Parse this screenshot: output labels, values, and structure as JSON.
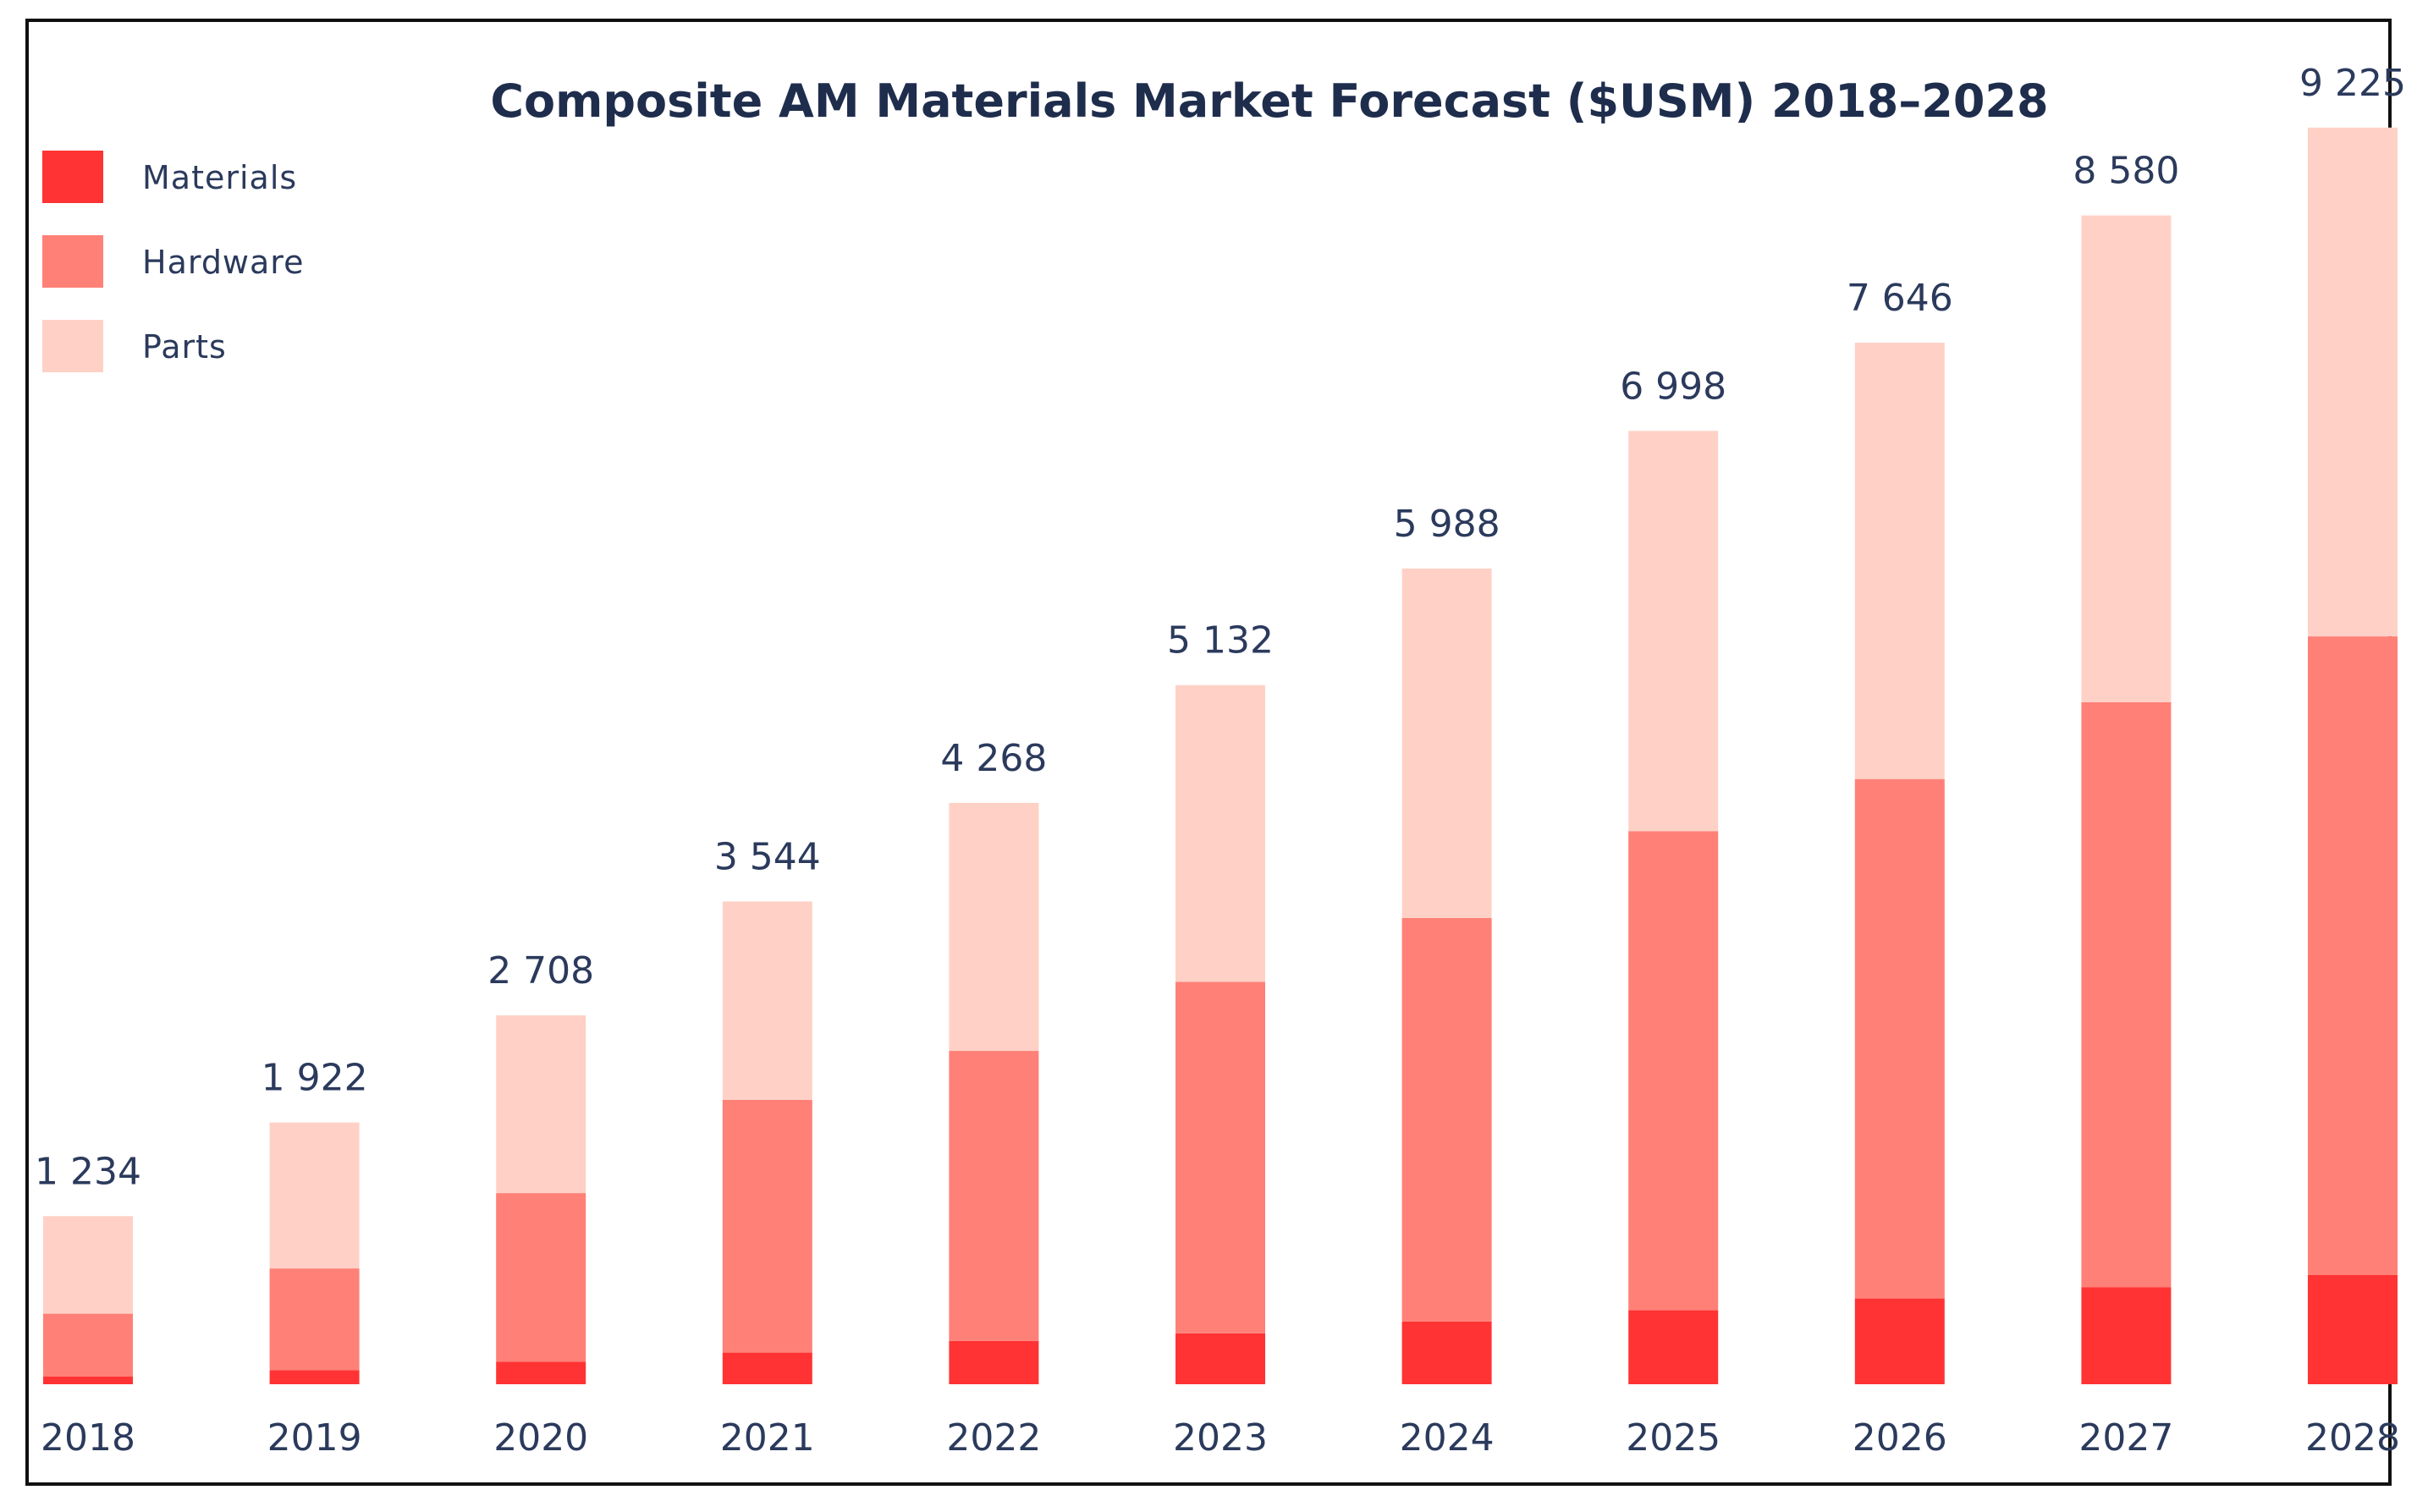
{
  "chart_data": {
    "type": "bar",
    "stacked": true,
    "title": "Composite AM Materials Market Forecast ($USM) 2018–2028",
    "xlabel": "",
    "ylabel": "",
    "ylim": [
      0,
      10000
    ],
    "grid": false,
    "legend_position": "top-left",
    "categories": [
      "2018",
      "2019",
      "2020",
      "2021",
      "2022",
      "2023",
      "2024",
      "2025",
      "2026",
      "2027",
      "2028"
    ],
    "series": [
      {
        "name": "Materials",
        "color": "#ff3333",
        "values": [
          58,
          103,
          166,
          232,
          318,
          374,
          460,
          543,
          630,
          713,
          801
        ]
      },
      {
        "name": "Hardware",
        "color": "#ff8077",
        "values": [
          460,
          747,
          1237,
          1856,
          2129,
          2580,
          2963,
          3517,
          3813,
          4294,
          4689
        ]
      },
      {
        "name": "Parts",
        "color": "#ffd1c6",
        "values": [
          716,
          1072,
          1305,
          1456,
          1821,
          2178,
          2565,
          2938,
          3203,
          3573,
          3735
        ]
      }
    ],
    "totals": [
      "1 234",
      "1 922",
      "2 708",
      "3 544",
      "4 268",
      "5 132",
      "5 988",
      "6 998",
      "7 646",
      "8 580",
      "9 225"
    ]
  }
}
